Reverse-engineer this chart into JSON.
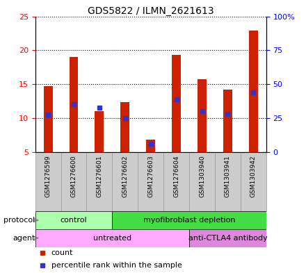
{
  "title": "GDS5822 / ILMN_2621613",
  "samples": [
    "GSM1276599",
    "GSM1276600",
    "GSM1276601",
    "GSM1276602",
    "GSM1276603",
    "GSM1276604",
    "GSM1303940",
    "GSM1303941",
    "GSM1303942"
  ],
  "counts": [
    14.7,
    19.0,
    11.0,
    12.4,
    6.8,
    19.3,
    15.7,
    14.2,
    22.9
  ],
  "percentiles": [
    10.5,
    12.0,
    11.5,
    10.0,
    6.2,
    12.8,
    11.0,
    10.6,
    13.8
  ],
  "bar_color": "#cc2200",
  "dot_color": "#3333cc",
  "ylim_left": [
    5,
    25
  ],
  "ylim_right": [
    0,
    100
  ],
  "yticks_left": [
    5,
    10,
    15,
    20,
    25
  ],
  "yticks_right": [
    0,
    25,
    50,
    75,
    100
  ],
  "yticklabels_right": [
    "0",
    "25",
    "50",
    "75",
    "100%"
  ],
  "protocol_groups": [
    {
      "label": "control",
      "start": 0,
      "end": 3,
      "color": "#aaffaa"
    },
    {
      "label": "myofibroblast depletion",
      "start": 3,
      "end": 9,
      "color": "#44dd44"
    }
  ],
  "agent_groups": [
    {
      "label": "untreated",
      "start": 0,
      "end": 6,
      "color": "#ffaaff"
    },
    {
      "label": "anti-CTLA4 antibody",
      "start": 6,
      "end": 9,
      "color": "#dd88dd"
    }
  ],
  "protocol_label": "protocol",
  "agent_label": "agent",
  "legend_count_label": "count",
  "legend_pct_label": "percentile rank within the sample",
  "bar_bottom": 5,
  "bar_width": 0.35,
  "sample_box_color": "#cccccc",
  "sample_box_edge": "#999999"
}
